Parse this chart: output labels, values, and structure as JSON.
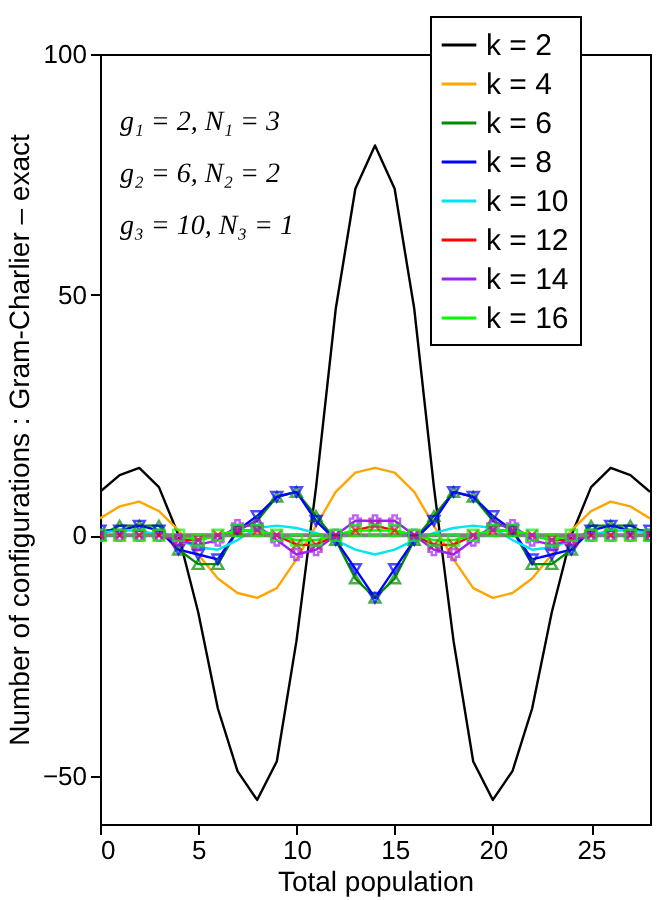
{
  "chart_data": {
    "type": "line",
    "xlabel": "Total population",
    "ylabel": "Number of configurations : Gram-Charlier – exact",
    "x": [
      0,
      1,
      2,
      3,
      4,
      5,
      6,
      7,
      8,
      9,
      10,
      11,
      12,
      13,
      14,
      15,
      16,
      17,
      18,
      19,
      20,
      21,
      22,
      23,
      24,
      25,
      26,
      27,
      28
    ],
    "xlim": [
      0,
      28
    ],
    "xticks": [
      0,
      5,
      10,
      15,
      20,
      25
    ],
    "ylim": [
      -60,
      100
    ],
    "yticks": [
      -50,
      0,
      50,
      100
    ],
    "grid": false,
    "legend": "top right",
    "annotations": [
      "g₁ = 2, N₁ = 3",
      "g₂ = 6, N₂ = 2",
      "g₃ = 10, N₃ = 1"
    ],
    "ref_lines": [
      {
        "axis": "y",
        "value": 0,
        "color": "#808080"
      }
    ],
    "series": [
      {
        "name": "k = 2",
        "color": "#000000",
        "marker": "none",
        "values": [
          9,
          12.5,
          14,
          10,
          0,
          -16,
          -36,
          -49,
          -55,
          -47,
          -22,
          10,
          47,
          72,
          81,
          72,
          47,
          10,
          -22,
          -47,
          -55,
          -49,
          -36,
          -16,
          0,
          10,
          14,
          12.5,
          9
        ]
      },
      {
        "name": "k = 4",
        "color": "#ffa500",
        "marker": "none",
        "values": [
          3.5,
          6,
          7,
          5,
          1,
          -4,
          -9,
          -12,
          -13,
          -11,
          -5,
          2,
          9,
          13,
          14,
          13,
          9,
          2,
          -5,
          -11,
          -13,
          -12,
          -9,
          -4,
          1,
          5,
          7,
          6,
          3.5
        ]
      },
      {
        "name": "k = 6",
        "color": "#008b00",
        "marker": "triangle",
        "values": [
          0,
          2,
          2,
          2,
          -3,
          -6,
          -6,
          1,
          3,
          8,
          9,
          4,
          -1,
          -9,
          -13,
          -9,
          -1,
          4,
          9,
          8,
          3,
          1,
          -6,
          -6,
          -3,
          2,
          2,
          2,
          0
        ]
      },
      {
        "name": "k = 8",
        "color": "#0000ff",
        "marker": "triangle-down",
        "values": [
          1,
          1,
          2,
          1,
          -3,
          -4,
          -5,
          1,
          4,
          8,
          9,
          3,
          -1,
          -7,
          -13,
          -7,
          -1,
          3,
          9,
          8,
          4,
          1,
          -5,
          -4,
          -3,
          1,
          2,
          1,
          1
        ]
      },
      {
        "name": "k = 10",
        "color": "#00e5ee",
        "marker": "none",
        "values": [
          0.5,
          1,
          1,
          0,
          -1,
          -2.5,
          -3,
          -1,
          1.5,
          2,
          1.5,
          0.5,
          -1,
          -3,
          -4,
          -3,
          -1,
          0.5,
          1.5,
          2,
          1.5,
          -1,
          -3,
          -2.5,
          -1,
          0,
          1,
          1,
          0.5
        ]
      },
      {
        "name": "k = 12",
        "color": "#ff0000",
        "marker": "cross",
        "values": [
          0,
          0,
          0,
          0,
          -1,
          -1,
          0,
          1,
          1,
          0,
          -2,
          -2,
          0,
          1,
          2,
          1,
          0,
          -2,
          -2,
          0,
          1,
          1,
          0,
          -1,
          -1,
          0,
          0,
          0,
          0
        ]
      },
      {
        "name": "k = 14",
        "color": "#a020f0",
        "marker": "plus",
        "values": [
          0,
          0,
          0,
          0,
          -1,
          -2,
          -1,
          2,
          2,
          -1,
          -4,
          -3,
          0,
          3,
          3,
          3,
          0,
          -3,
          -4,
          -1,
          2,
          2,
          -1,
          -2,
          -1,
          0,
          0,
          0,
          0
        ]
      },
      {
        "name": "k = 16",
        "color": "#00ff00",
        "marker": "square",
        "values": [
          0,
          0,
          0,
          0,
          0,
          -1,
          0,
          1,
          1,
          0,
          -1,
          -1,
          0,
          1,
          1,
          1,
          0,
          -1,
          -1,
          0,
          1,
          1,
          0,
          -1,
          0,
          0,
          0,
          0,
          0
        ]
      }
    ]
  }
}
